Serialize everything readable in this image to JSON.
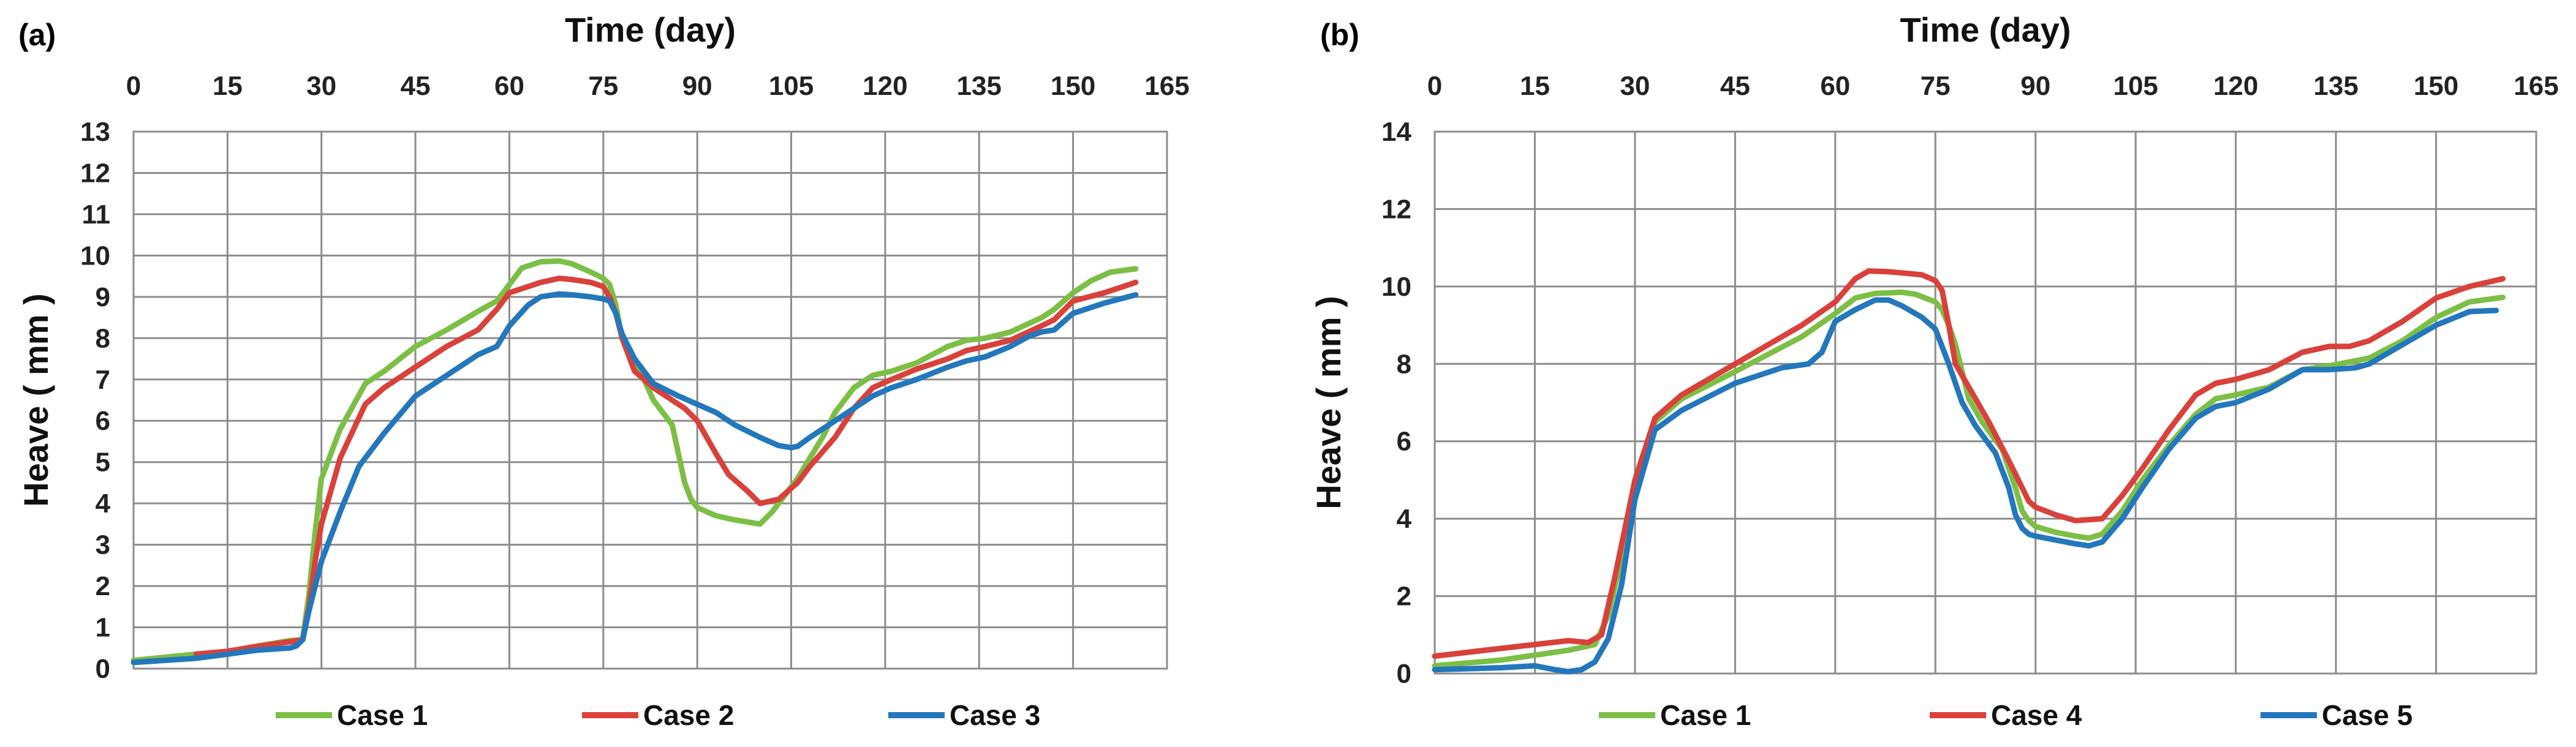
{
  "colors": {
    "green": "#7cbf45",
    "red": "#d9413a",
    "blue": "#2377bd"
  },
  "chart_data": [
    {
      "type": "line",
      "panel_label": "(a)",
      "title": "",
      "xlabel": "Time (day)",
      "ylabel": "Heave ( mm )",
      "xlim": [
        0,
        165
      ],
      "ylim": [
        0,
        13
      ],
      "xticks": [
        0,
        15,
        30,
        45,
        60,
        75,
        90,
        105,
        120,
        135,
        150,
        165
      ],
      "yticks": [
        0,
        1,
        2,
        3,
        4,
        5,
        6,
        7,
        8,
        9,
        10,
        11,
        12,
        13
      ],
      "x_axis_position": "top",
      "grid": true,
      "legend": "bottom",
      "series": [
        {
          "name": "Case 1",
          "color": "#7cbf45",
          "x": [
            0,
            10,
            15,
            20,
            25,
            27,
            28,
            29,
            30,
            33,
            37,
            40,
            45,
            50,
            55,
            58,
            60,
            62,
            65,
            68,
            70,
            73,
            75,
            76,
            77,
            78,
            80,
            83,
            86,
            87,
            88,
            89,
            90,
            93,
            96,
            98,
            100,
            102,
            104,
            106,
            108,
            110,
            112,
            115,
            118,
            121,
            125,
            130,
            133,
            136,
            140,
            145,
            147,
            150,
            153,
            156,
            160
          ],
          "y": [
            0.2,
            0.35,
            0.42,
            0.55,
            0.68,
            0.7,
            1.8,
            3.3,
            4.6,
            5.8,
            6.9,
            7.2,
            7.8,
            8.2,
            8.65,
            8.9,
            9.3,
            9.7,
            9.85,
            9.87,
            9.8,
            9.6,
            9.45,
            9.3,
            8.8,
            8.0,
            7.5,
            6.5,
            5.9,
            5.2,
            4.5,
            4.1,
            3.9,
            3.7,
            3.6,
            3.55,
            3.5,
            3.8,
            4.2,
            4.6,
            5.1,
            5.6,
            6.2,
            6.8,
            7.1,
            7.2,
            7.4,
            7.8,
            7.95,
            8.0,
            8.15,
            8.5,
            8.7,
            9.1,
            9.4,
            9.6,
            9.68
          ]
        },
        {
          "name": "Case 2",
          "color": "#d9413a",
          "x": [
            10,
            15,
            20,
            25,
            27,
            28,
            29,
            30,
            33,
            37,
            40,
            45,
            50,
            55,
            58,
            60,
            63,
            65,
            68,
            70,
            73,
            75,
            76,
            77,
            78,
            80,
            83,
            86,
            88,
            90,
            93,
            95,
            98,
            100,
            103,
            106,
            108,
            112,
            115,
            118,
            121,
            125,
            130,
            133,
            136,
            140,
            145,
            147,
            150,
            155,
            160
          ],
          "y": [
            0.35,
            0.42,
            0.55,
            0.65,
            0.7,
            1.5,
            2.6,
            3.5,
            5.1,
            6.4,
            6.8,
            7.3,
            7.8,
            8.2,
            8.7,
            9.1,
            9.25,
            9.35,
            9.45,
            9.42,
            9.35,
            9.25,
            9.0,
            8.6,
            8.0,
            7.2,
            6.8,
            6.5,
            6.3,
            6.0,
            5.2,
            4.7,
            4.3,
            4.0,
            4.1,
            4.5,
            4.9,
            5.6,
            6.3,
            6.8,
            7.0,
            7.25,
            7.5,
            7.7,
            7.8,
            7.95,
            8.3,
            8.45,
            8.9,
            9.1,
            9.35
          ]
        },
        {
          "name": "Case 3",
          "color": "#2377bd",
          "x": [
            0,
            10,
            15,
            20,
            25,
            26,
            27,
            28,
            29,
            30,
            33,
            36,
            40,
            45,
            50,
            55,
            58,
            60,
            63,
            65,
            68,
            70,
            73,
            75,
            76,
            77,
            78,
            80,
            83,
            87,
            90,
            93,
            96,
            100,
            103,
            105,
            106,
            108,
            112,
            115,
            118,
            121,
            125,
            130,
            133,
            136,
            140,
            143,
            145,
            147,
            150,
            155,
            160
          ],
          "y": [
            0.15,
            0.25,
            0.35,
            0.45,
            0.5,
            0.55,
            0.7,
            1.4,
            2.0,
            2.6,
            3.8,
            4.9,
            5.7,
            6.6,
            7.1,
            7.6,
            7.8,
            8.3,
            8.8,
            9.0,
            9.07,
            9.05,
            9.0,
            8.95,
            8.9,
            8.6,
            8.1,
            7.5,
            6.9,
            6.6,
            6.4,
            6.2,
            5.9,
            5.6,
            5.4,
            5.35,
            5.38,
            5.6,
            6.0,
            6.3,
            6.6,
            6.8,
            7.0,
            7.3,
            7.45,
            7.55,
            7.8,
            8.05,
            8.15,
            8.2,
            8.6,
            8.85,
            9.05
          ]
        }
      ]
    },
    {
      "type": "line",
      "panel_label": "(b)",
      "title": "",
      "xlabel": "Time (day)",
      "ylabel": "Heave ( mm )",
      "xlim": [
        0,
        165
      ],
      "ylim": [
        0,
        14
      ],
      "xticks": [
        0,
        15,
        30,
        45,
        60,
        75,
        90,
        105,
        120,
        135,
        150,
        165
      ],
      "yticks": [
        0,
        2,
        4,
        6,
        8,
        10,
        12,
        14
      ],
      "x_axis_position": "top",
      "grid": true,
      "legend": "bottom",
      "series": [
        {
          "name": "Case 1",
          "color": "#7cbf45",
          "x": [
            0,
            10,
            20,
            24,
            26,
            28,
            30,
            33,
            37,
            45,
            55,
            60,
            63,
            66,
            70,
            72,
            75,
            76,
            77,
            78,
            80,
            82,
            85,
            87,
            88,
            89,
            90,
            93,
            96,
            98,
            100,
            103,
            106,
            110,
            114,
            117,
            120,
            125,
            130,
            134,
            140,
            145,
            150,
            155,
            160
          ],
          "y": [
            0.2,
            0.35,
            0.6,
            0.75,
            1.5,
            3.0,
            4.8,
            6.5,
            7.1,
            7.8,
            8.7,
            9.3,
            9.7,
            9.82,
            9.85,
            9.8,
            9.6,
            9.4,
            9.0,
            8.5,
            7.1,
            6.5,
            5.8,
            4.8,
            4.2,
            3.95,
            3.8,
            3.65,
            3.55,
            3.5,
            3.6,
            4.2,
            5.0,
            5.9,
            6.7,
            7.1,
            7.2,
            7.4,
            7.85,
            7.95,
            8.15,
            8.6,
            9.2,
            9.6,
            9.72
          ]
        },
        {
          "name": "Case 4",
          "color": "#d9413a",
          "x": [
            0,
            10,
            15,
            20,
            23,
            25,
            27,
            30,
            33,
            37,
            45,
            55,
            60,
            63,
            65,
            68,
            70,
            73,
            75,
            76,
            77,
            78,
            80,
            83,
            86,
            88,
            89,
            90,
            93,
            96,
            100,
            103,
            106,
            110,
            114,
            117,
            120,
            125,
            130,
            134,
            137,
            140,
            145,
            150,
            155,
            160
          ],
          "y": [
            0.45,
            0.65,
            0.75,
            0.85,
            0.8,
            1.0,
            2.5,
            5.0,
            6.6,
            7.2,
            8.0,
            9.0,
            9.6,
            10.2,
            10.4,
            10.38,
            10.35,
            10.3,
            10.15,
            9.9,
            9.0,
            8.0,
            7.4,
            6.5,
            5.5,
            4.8,
            4.45,
            4.3,
            4.1,
            3.95,
            4.0,
            4.6,
            5.3,
            6.3,
            7.2,
            7.5,
            7.6,
            7.85,
            8.3,
            8.45,
            8.45,
            8.6,
            9.1,
            9.7,
            10.0,
            10.2
          ]
        },
        {
          "name": "Case 5",
          "color": "#2377bd",
          "x": [
            0,
            10,
            15,
            18,
            20,
            22,
            24,
            26,
            28,
            30,
            33,
            37,
            45,
            52,
            56,
            58,
            60,
            63,
            66,
            68,
            70,
            73,
            75,
            77,
            79,
            81,
            84,
            86,
            87,
            88,
            89,
            90,
            93,
            96,
            98,
            100,
            103,
            106,
            110,
            114,
            117,
            120,
            125,
            130,
            134,
            138,
            140,
            145,
            150,
            155,
            159
          ],
          "y": [
            0.1,
            0.15,
            0.2,
            0.1,
            0.05,
            0.1,
            0.3,
            0.9,
            2.3,
            4.5,
            6.3,
            6.8,
            7.5,
            7.9,
            8.0,
            8.3,
            9.1,
            9.4,
            9.65,
            9.65,
            9.5,
            9.2,
            8.9,
            8.0,
            7.0,
            6.4,
            5.7,
            4.8,
            4.1,
            3.75,
            3.6,
            3.55,
            3.45,
            3.35,
            3.3,
            3.4,
            4.0,
            4.8,
            5.8,
            6.6,
            6.9,
            7.0,
            7.35,
            7.85,
            7.85,
            7.9,
            8.0,
            8.5,
            9.0,
            9.35,
            9.38
          ]
        }
      ]
    }
  ]
}
